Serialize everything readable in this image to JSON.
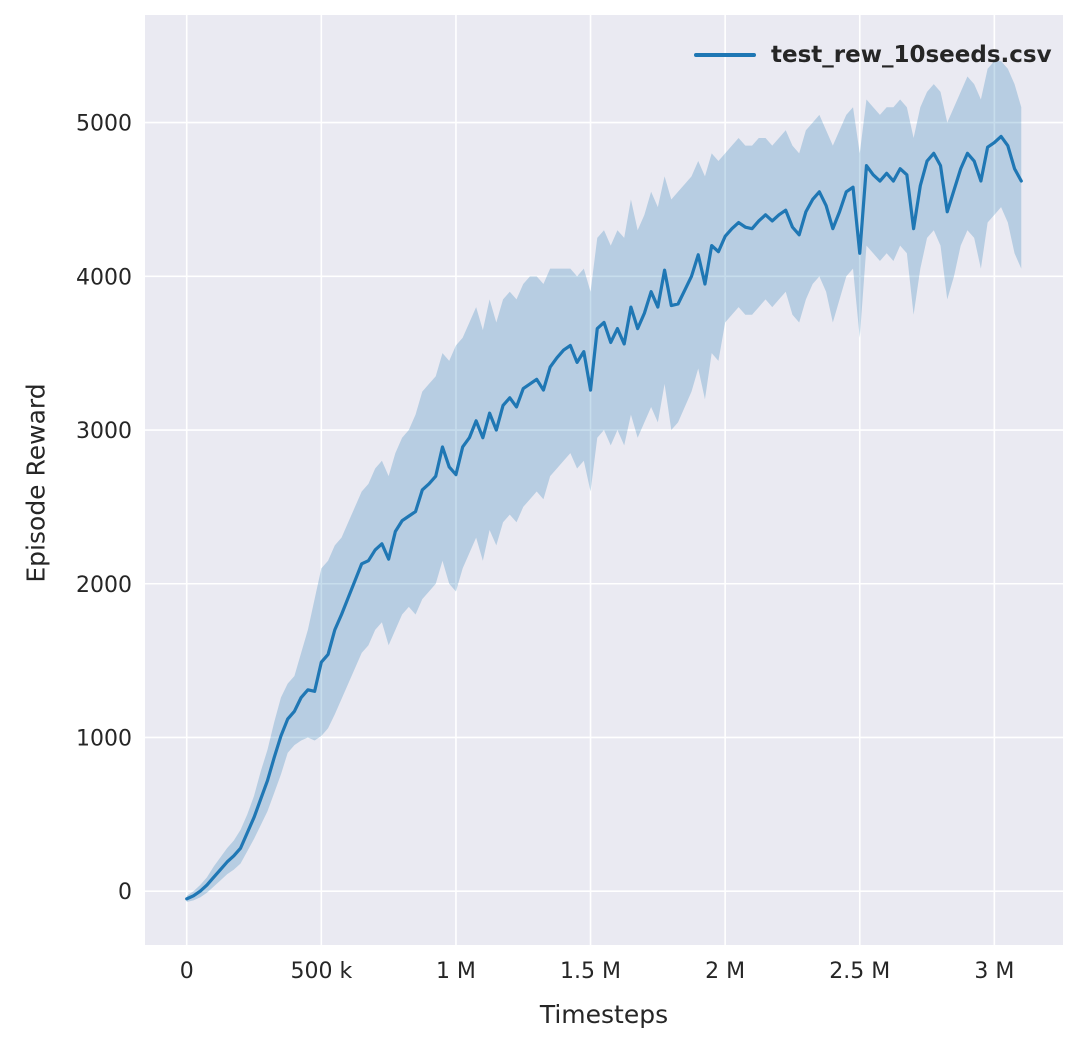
{
  "figure": {
    "background": "#ffffff"
  },
  "legend": {
    "entries": [
      {
        "label": "test_rew_10seeds.csv"
      }
    ],
    "position": "upper right"
  },
  "chart_data": {
    "type": "line",
    "title": "",
    "xlabel": "Timesteps",
    "ylabel": "Episode Reward",
    "xlim": [
      -155000,
      3255000
    ],
    "ylim": [
      -350,
      5700
    ],
    "grid": true,
    "legend_position": "upper right",
    "colors": {
      "plot_background": "#eaeaf2",
      "grid": "#ffffff",
      "line": "#1f77b4",
      "band_opacity": 0.25,
      "tick_text": "#262626"
    },
    "xticks": [
      {
        "value": 0,
        "label": "0"
      },
      {
        "value": 500000,
        "label": "500 k"
      },
      {
        "value": 1000000,
        "label": "1 M"
      },
      {
        "value": 1500000,
        "label": "1.5 M"
      },
      {
        "value": 2000000,
        "label": "2 M"
      },
      {
        "value": 2500000,
        "label": "2.5 M"
      },
      {
        "value": 3000000,
        "label": "3 M"
      }
    ],
    "yticks": [
      {
        "value": 0,
        "label": "0"
      },
      {
        "value": 1000,
        "label": "1000"
      },
      {
        "value": 2000,
        "label": "2000"
      },
      {
        "value": 3000,
        "label": "3000"
      },
      {
        "value": 4000,
        "label": "4000"
      },
      {
        "value": 5000,
        "label": "5000"
      }
    ],
    "x_start": 0,
    "x_step": 25000,
    "series": [
      {
        "name": "test_rew_10seeds.csv",
        "mean": [
          -50,
          -30,
          0,
          40,
          90,
          140,
          190,
          230,
          280,
          380,
          480,
          600,
          720,
          870,
          1010,
          1120,
          1170,
          1260,
          1310,
          1300,
          1490,
          1540,
          1700,
          1800,
          1910,
          2020,
          2130,
          2150,
          2220,
          2260,
          2160,
          2340,
          2410,
          2440,
          2470,
          2610,
          2650,
          2700,
          2890,
          2760,
          2710,
          2890,
          2950,
          3060,
          2950,
          3110,
          3000,
          3160,
          3210,
          3150,
          3270,
          3300,
          3330,
          3260,
          3410,
          3470,
          3520,
          3550,
          3440,
          3510,
          3260,
          3660,
          3700,
          3570,
          3660,
          3560,
          3800,
          3660,
          3760,
          3900,
          3800,
          4040,
          3810,
          3820,
          3910,
          4000,
          4140,
          3950,
          4200,
          4160,
          4260,
          4310,
          4350,
          4320,
          4310,
          4360,
          4400,
          4360,
          4400,
          4430,
          4320,
          4270,
          4420,
          4500,
          4550,
          4460,
          4310,
          4420,
          4550,
          4580,
          4150,
          4720,
          4660,
          4620,
          4670,
          4620,
          4700,
          4660,
          4310,
          4590,
          4750,
          4800,
          4720,
          4420,
          4560,
          4700,
          4800,
          4750,
          4620,
          4840,
          4870,
          4910,
          4850,
          4700,
          4620
        ],
        "band_low": [
          -70,
          -60,
          -40,
          -10,
          30,
          70,
          110,
          140,
          180,
          260,
          340,
          430,
          520,
          640,
          760,
          900,
          950,
          980,
          1000,
          980,
          1010,
          1060,
          1150,
          1250,
          1350,
          1450,
          1550,
          1600,
          1700,
          1750,
          1600,
          1700,
          1800,
          1850,
          1800,
          1900,
          1950,
          2000,
          2150,
          2000,
          1950,
          2100,
          2200,
          2300,
          2150,
          2350,
          2250,
          2400,
          2450,
          2400,
          2500,
          2550,
          2600,
          2550,
          2700,
          2750,
          2800,
          2850,
          2750,
          2800,
          2600,
          2950,
          3000,
          2900,
          3000,
          2900,
          3100,
          2950,
          3050,
          3150,
          3050,
          3300,
          3000,
          3050,
          3150,
          3250,
          3400,
          3200,
          3500,
          3450,
          3700,
          3750,
          3800,
          3750,
          3750,
          3800,
          3850,
          3800,
          3850,
          3900,
          3750,
          3700,
          3850,
          3950,
          4000,
          3900,
          3700,
          3850,
          4000,
          4050,
          3600,
          4200,
          4150,
          4100,
          4150,
          4100,
          4200,
          4150,
          3750,
          4050,
          4250,
          4300,
          4200,
          3850,
          4000,
          4200,
          4300,
          4250,
          4050,
          4350,
          4400,
          4450,
          4350,
          4150,
          4050
        ],
        "band_high": [
          -30,
          0,
          40,
          90,
          160,
          220,
          280,
          330,
          400,
          500,
          620,
          780,
          920,
          1100,
          1260,
          1350,
          1400,
          1550,
          1700,
          1900,
          2100,
          2150,
          2250,
          2300,
          2400,
          2500,
          2600,
          2650,
          2750,
          2800,
          2700,
          2850,
          2950,
          3000,
          3100,
          3250,
          3300,
          3350,
          3500,
          3450,
          3550,
          3600,
          3700,
          3800,
          3650,
          3850,
          3700,
          3850,
          3900,
          3850,
          3950,
          4000,
          4000,
          3950,
          4050,
          4050,
          4050,
          4050,
          4000,
          4050,
          3900,
          4250,
          4300,
          4200,
          4300,
          4250,
          4500,
          4300,
          4400,
          4550,
          4450,
          4650,
          4500,
          4550,
          4600,
          4650,
          4750,
          4650,
          4800,
          4750,
          4800,
          4850,
          4900,
          4850,
          4850,
          4900,
          4900,
          4850,
          4900,
          4950,
          4850,
          4800,
          4950,
          5000,
          5050,
          4950,
          4850,
          4950,
          5050,
          5100,
          4800,
          5150,
          5100,
          5050,
          5100,
          5100,
          5150,
          5100,
          4900,
          5100,
          5200,
          5250,
          5200,
          5000,
          5100,
          5200,
          5300,
          5250,
          5150,
          5350,
          5400,
          5400,
          5350,
          5250,
          5100
        ]
      }
    ]
  }
}
